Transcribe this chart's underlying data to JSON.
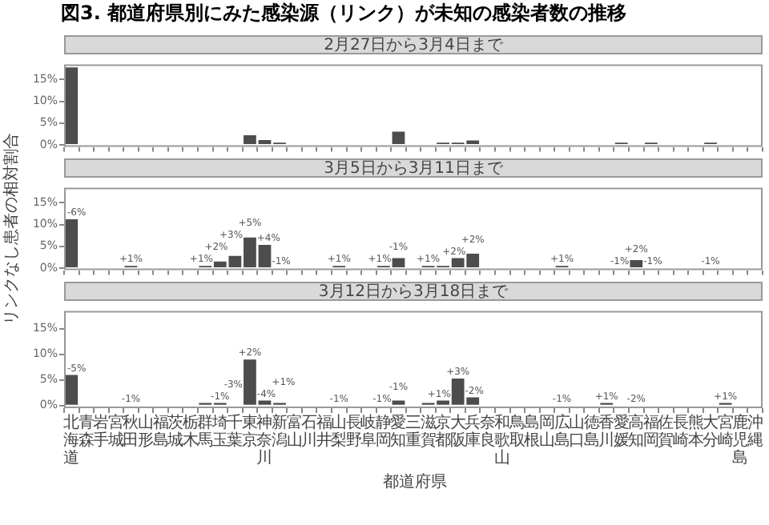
{
  "chart_data": [
    {
      "type": "bar",
      "title": "図3. 都道府県別にみた感染源（リンク）が未知の感染者数の推移",
      "subtitle": "2月27日から3月4日まで",
      "tick_labels": "y",
      "color": "#4d4d4d",
      "categories": [
        "北海道",
        "青森",
        "岩手",
        "宮城",
        "秋田",
        "山形",
        "福島",
        "茨城",
        "栃木",
        "群馬",
        "埼玉",
        "千葉",
        "東京",
        "神奈川",
        "新潟",
        "富山",
        "石川",
        "福井",
        "山梨",
        "長野",
        "岐阜",
        "静岡",
        "愛知",
        "三重",
        "滋賀",
        "京都",
        "大阪",
        "兵庫",
        "奈良",
        "和歌山",
        "鳥取",
        "島根",
        "岡山",
        "広島",
        "山口",
        "徳島",
        "香川",
        "愛媛",
        "高知",
        "福岡",
        "佐賀",
        "長崎",
        "熊本",
        "大分",
        "宮崎",
        "鹿児島",
        "沖縄"
      ],
      "values": [
        17.8,
        0,
        0,
        0,
        0,
        0,
        0,
        0,
        0,
        0,
        0,
        0,
        2.2,
        1.1,
        0.5,
        0,
        0,
        0,
        0,
        0,
        0,
        0,
        3.0,
        0,
        0,
        0.5,
        0.5,
        1.0,
        0,
        0,
        0,
        0,
        0,
        0,
        0,
        0,
        0,
        0.5,
        0,
        0.5,
        0,
        0,
        0,
        0.5,
        0,
        0,
        0
      ],
      "ylim": [
        -0.5,
        18.5
      ],
      "yticks": [
        {
          "value": 0,
          "label": "0%"
        },
        {
          "value": 5,
          "label": "5%"
        },
        {
          "value": 10,
          "label": "10%"
        },
        {
          "value": 15,
          "label": "15%"
        }
      ],
      "grid": false,
      "legend": false
    },
    {
      "type": "bar",
      "subtitle": "3月5日から3月11日まで",
      "ylabel": "リンクなし患者の相対割合",
      "tick_labels": "y",
      "color": "#4d4d4d",
      "categories": [
        "北海道",
        "青森",
        "岩手",
        "宮城",
        "秋田",
        "山形",
        "福島",
        "茨城",
        "栃木",
        "群馬",
        "埼玉",
        "千葉",
        "東京",
        "神奈川",
        "新潟",
        "富山",
        "石川",
        "福井",
        "山梨",
        "長野",
        "岐阜",
        "静岡",
        "愛知",
        "三重",
        "滋賀",
        "京都",
        "大阪",
        "兵庫",
        "奈良",
        "和歌山",
        "鳥取",
        "島根",
        "岡山",
        "広島",
        "山口",
        "徳島",
        "香川",
        "愛媛",
        "高知",
        "福岡",
        "佐賀",
        "長崎",
        "熊本",
        "大分",
        "宮崎",
        "鹿児島",
        "沖縄"
      ],
      "values": [
        11.2,
        0,
        0,
        0,
        0.5,
        0,
        0,
        0,
        0,
        0.5,
        1.5,
        2.8,
        7.0,
        5.3,
        0,
        0,
        0,
        0,
        0.5,
        0,
        0,
        0.5,
        2.3,
        0,
        0.5,
        0.5,
        2.3,
        3.3,
        0,
        0,
        0,
        0,
        0,
        0.5,
        0,
        0,
        0,
        0,
        1.8,
        0,
        0,
        0,
        0,
        0,
        0,
        0,
        0
      ],
      "annotations": [
        {
          "text": "-6%",
          "x": "北海道",
          "y": 11.2
        },
        {
          "text": "+1%",
          "x": "秋田",
          "y": 0.5
        },
        {
          "text": "+1%",
          "x": "群馬",
          "y": 0.5
        },
        {
          "text": "+2%",
          "x": "埼玉",
          "y": 1.5
        },
        {
          "text": "+3%",
          "x": "千葉",
          "y": 2.8
        },
        {
          "text": "+5%",
          "x": "東京",
          "y": 7.0
        },
        {
          "text": "+4%",
          "x": "神奈川",
          "y": 5.3
        },
        {
          "text": "-1%",
          "x": "新潟",
          "y": 0
        },
        {
          "text": "+1%",
          "x": "山梨",
          "y": 0.5
        },
        {
          "text": "+1%",
          "x": "静岡",
          "y": 0.5
        },
        {
          "text": "-1%",
          "x": "愛知",
          "y": 2.3
        },
        {
          "text": "+1%",
          "x": "滋賀",
          "y": 0.5
        },
        {
          "text": "+2%",
          "x": "大阪",
          "y": 2.3
        },
        {
          "text": "+2%",
          "x": "兵庫",
          "y": 3.3
        },
        {
          "text": "+1%",
          "x": "広島",
          "y": 0.5
        },
        {
          "text": "-1%",
          "x": "愛媛",
          "y": 0
        },
        {
          "text": "+2%",
          "x": "高知",
          "y": 1.8
        },
        {
          "text": "-1%",
          "x": "福岡",
          "y": 0
        },
        {
          "text": "-1%",
          "x": "大分",
          "y": 0
        }
      ],
      "ylim": [
        -0.5,
        18.5
      ],
      "yticks": [
        {
          "value": 0,
          "label": "0%"
        },
        {
          "value": 5,
          "label": "5%"
        },
        {
          "value": 10,
          "label": "10%"
        },
        {
          "value": 15,
          "label": "15%"
        }
      ],
      "grid": false,
      "legend": false
    },
    {
      "type": "bar",
      "subtitle": "3月12日から3月18日まで",
      "xlabel": "都道府県",
      "color": "#4d4d4d",
      "categories": [
        "北海道",
        "青森",
        "岩手",
        "宮城",
        "秋田",
        "山形",
        "福島",
        "茨城",
        "栃木",
        "群馬",
        "埼玉",
        "千葉",
        "東京",
        "神奈川",
        "新潟",
        "富山",
        "石川",
        "福井",
        "山梨",
        "長野",
        "岐阜",
        "静岡",
        "愛知",
        "三重",
        "滋賀",
        "京都",
        "大阪",
        "兵庫",
        "奈良",
        "和歌山",
        "鳥取",
        "島根",
        "岡山",
        "広島",
        "山口",
        "徳島",
        "香川",
        "愛媛",
        "高知",
        "福岡",
        "佐賀",
        "長崎",
        "熊本",
        "大分",
        "宮崎",
        "鹿児島",
        "沖縄"
      ],
      "values": [
        6.0,
        0,
        0,
        0,
        0,
        0,
        0,
        0,
        0,
        0.5,
        0.5,
        0,
        9.0,
        1.0,
        0.5,
        0,
        0,
        0,
        0,
        0,
        0,
        0,
        1.0,
        0,
        0.5,
        1.0,
        5.3,
        1.6,
        0,
        0,
        0,
        0,
        0,
        0,
        0,
        0,
        0.5,
        0,
        0,
        0,
        0,
        0,
        0,
        0,
        0.5,
        0,
        0
      ],
      "annotations": [
        {
          "text": "-5%",
          "x": "北海道",
          "y": 6.0
        },
        {
          "text": "-1%",
          "x": "秋田",
          "y": 0
        },
        {
          "text": "-1%",
          "x": "埼玉",
          "y": 0.5
        },
        {
          "text": "-3%",
          "x": "千葉",
          "y": 0
        },
        {
          "text": "+2%",
          "x": "東京",
          "y": 9.0
        },
        {
          "text": "-4%",
          "x": "神奈川",
          "y": 1.0
        },
        {
          "text": "+1%",
          "x": "新潟",
          "y": 0.5
        },
        {
          "text": "-1%",
          "x": "山梨",
          "y": 0
        },
        {
          "text": "-1%",
          "x": "静岡",
          "y": 0
        },
        {
          "text": "-1%",
          "x": "愛知",
          "y": 1.0
        },
        {
          "text": "+1%",
          "x": "京都",
          "y": 1.0
        },
        {
          "text": "+3%",
          "x": "大阪",
          "y": 5.3
        },
        {
          "text": "-2%",
          "x": "兵庫",
          "y": 1.6
        },
        {
          "text": "-1%",
          "x": "広島",
          "y": 0
        },
        {
          "text": "+1%",
          "x": "香川",
          "y": 0.5
        },
        {
          "text": "-2%",
          "x": "高知",
          "y": 0
        },
        {
          "text": "+1%",
          "x": "宮崎",
          "y": 0.5
        }
      ],
      "ylim": [
        -0.5,
        18.5
      ],
      "yticks": [
        {
          "value": 0,
          "label": "0%"
        },
        {
          "value": 5,
          "label": "5%"
        },
        {
          "value": 10,
          "label": "10%"
        },
        {
          "value": 15,
          "label": "15%"
        }
      ],
      "grid": false,
      "legend": false
    }
  ]
}
